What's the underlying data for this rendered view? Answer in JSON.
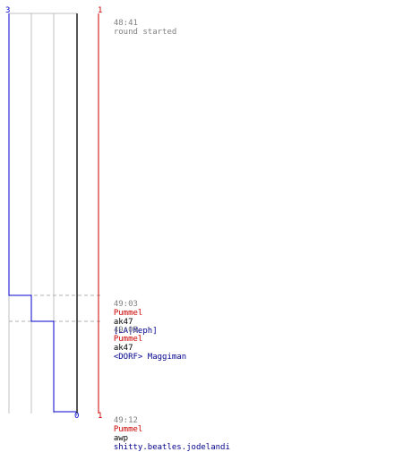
{
  "chart_data": {
    "type": "line",
    "title": "",
    "xlabel": "",
    "ylabel": "",
    "series": [
      {
        "color": "#0000cc",
        "start_label": "3",
        "end_label": "0",
        "steps": [
          3,
          2,
          1,
          0
        ]
      },
      {
        "color": "#cc0000",
        "start_label": "1",
        "end_label": "1",
        "steps": [
          1,
          1,
          1,
          1
        ]
      }
    ]
  },
  "events": [
    {
      "time": "48:41",
      "text": "round started"
    },
    {
      "time": "49:03",
      "killer": "Pummel",
      "weapon": "ak47",
      "victim": "[LA|Meph]"
    },
    {
      "time": "49:05",
      "killer": "Pummel",
      "weapon": "ak47",
      "victim": "<DORF> Maggiman"
    },
    {
      "time": "49:12",
      "killer": "Pummel",
      "weapon": "awp",
      "victim": "shitty.beatles.jodelandi"
    }
  ],
  "colors": {
    "team_blue": "#0000cc",
    "team_red": "#cc0000",
    "grid": "#c0c0c0",
    "divider": "#404040",
    "killer_text": "#cc0000",
    "victim_text": "#00008b",
    "time_text": "#808080"
  }
}
